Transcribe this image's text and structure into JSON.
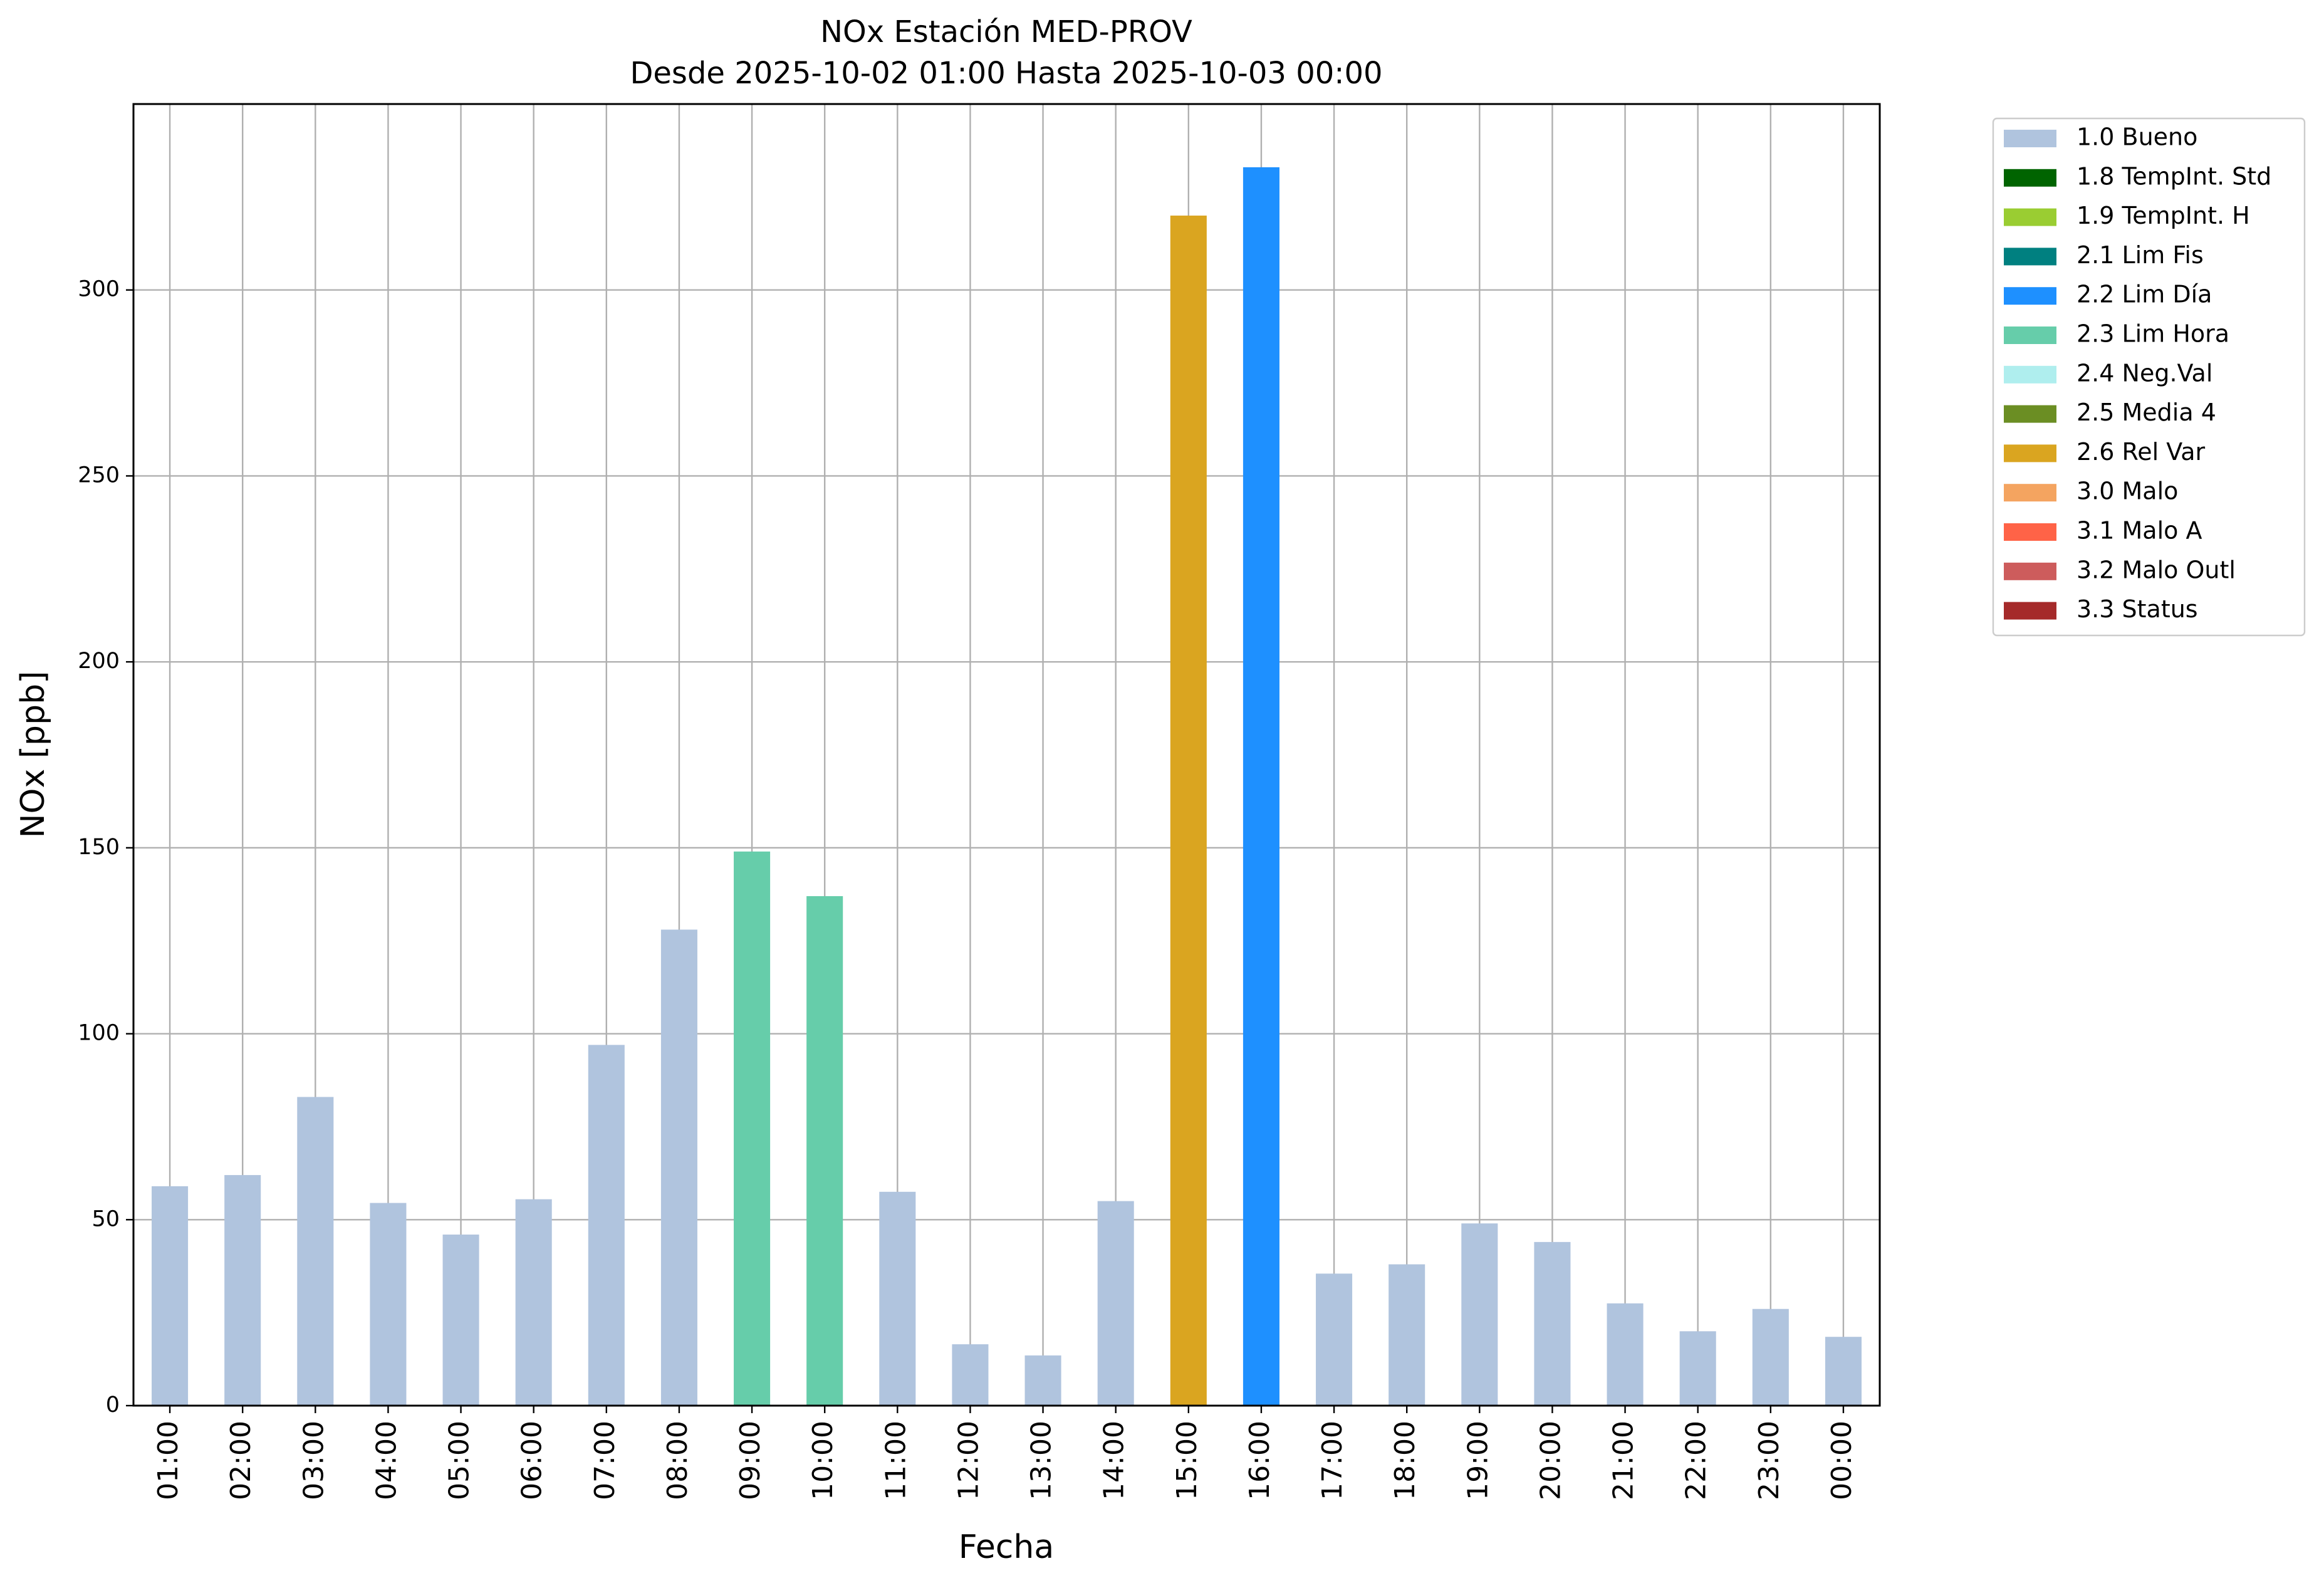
{
  "chart_data": {
    "type": "bar",
    "title": "NOx Estación MED-PROV",
    "subtitle": "Desde 2025-10-02 01:00 Hasta 2025-10-03 00:00",
    "x_label": "Fecha",
    "y_label": "NOx [ppb]",
    "categories": [
      "01:00",
      "02:00",
      "03:00",
      "04:00",
      "05:00",
      "06:00",
      "07:00",
      "08:00",
      "09:00",
      "10:00",
      "11:00",
      "12:00",
      "13:00",
      "14:00",
      "15:00",
      "16:00",
      "17:00",
      "18:00",
      "19:00",
      "20:00",
      "21:00",
      "22:00",
      "23:00",
      "00:00"
    ],
    "series": [
      {
        "name": "1.0 Bueno",
        "color": "#b0c4de",
        "values": [
          59,
          62,
          83,
          54.5,
          46,
          55.5,
          97,
          128,
          null,
          null,
          57.5,
          16.5,
          13.5,
          55,
          null,
          null,
          35.5,
          38,
          49,
          44,
          27.5,
          20,
          26,
          18.5
        ]
      },
      {
        "name": "1.8 TempInt. Std",
        "color": "#006400",
        "values": [
          null,
          null,
          null,
          null,
          null,
          null,
          null,
          null,
          null,
          null,
          null,
          null,
          null,
          null,
          null,
          null,
          null,
          null,
          null,
          null,
          null,
          null,
          null,
          null
        ]
      },
      {
        "name": "1.9 TempInt. H",
        "color": "#9acd32",
        "values": [
          null,
          null,
          null,
          null,
          null,
          null,
          null,
          null,
          null,
          null,
          null,
          null,
          null,
          null,
          null,
          null,
          null,
          null,
          null,
          null,
          null,
          null,
          null,
          null
        ]
      },
      {
        "name": "2.1 Lim Fis",
        "color": "#008080",
        "values": [
          null,
          null,
          null,
          null,
          null,
          null,
          null,
          null,
          null,
          null,
          null,
          null,
          null,
          null,
          null,
          null,
          null,
          null,
          null,
          null,
          null,
          null,
          null,
          null
        ]
      },
      {
        "name": "2.2 Lim Día",
        "color": "#1e90ff",
        "values": [
          null,
          null,
          null,
          null,
          null,
          null,
          null,
          null,
          null,
          null,
          null,
          null,
          null,
          null,
          null,
          333,
          null,
          null,
          null,
          null,
          null,
          null,
          null,
          null
        ]
      },
      {
        "name": "2.3 Lim Hora",
        "color": "#66cdaa",
        "values": [
          null,
          null,
          null,
          null,
          null,
          null,
          null,
          null,
          149,
          137,
          null,
          null,
          null,
          null,
          null,
          null,
          null,
          null,
          null,
          null,
          null,
          null,
          null,
          null
        ]
      },
      {
        "name": "2.4 Neg.Val",
        "color": "#afeeee",
        "values": [
          null,
          null,
          null,
          null,
          null,
          null,
          null,
          null,
          null,
          null,
          null,
          null,
          null,
          null,
          null,
          null,
          null,
          null,
          null,
          null,
          null,
          null,
          null,
          null
        ]
      },
      {
        "name": "2.5 Media 4",
        "color": "#6b8e23",
        "values": [
          null,
          null,
          null,
          null,
          null,
          null,
          null,
          null,
          null,
          null,
          null,
          null,
          null,
          null,
          null,
          null,
          null,
          null,
          null,
          null,
          null,
          null,
          null,
          null
        ]
      },
      {
        "name": "2.6 Rel Var",
        "color": "#daa520",
        "values": [
          null,
          null,
          null,
          null,
          null,
          null,
          null,
          null,
          null,
          null,
          null,
          null,
          null,
          null,
          320,
          null,
          null,
          null,
          null,
          null,
          null,
          null,
          null,
          null
        ]
      },
      {
        "name": "3.0 Malo",
        "color": "#f4a460",
        "values": [
          null,
          null,
          null,
          null,
          null,
          null,
          null,
          null,
          null,
          null,
          null,
          null,
          null,
          null,
          null,
          null,
          null,
          null,
          null,
          null,
          null,
          null,
          null,
          null
        ]
      },
      {
        "name": "3.1 Malo A",
        "color": "#ff6347",
        "values": [
          null,
          null,
          null,
          null,
          null,
          null,
          null,
          null,
          null,
          null,
          null,
          null,
          null,
          null,
          null,
          null,
          null,
          null,
          null,
          null,
          null,
          null,
          null,
          null
        ]
      },
      {
        "name": "3.2 Malo Outl",
        "color": "#cd5c5c",
        "values": [
          null,
          null,
          null,
          null,
          null,
          null,
          null,
          null,
          null,
          null,
          null,
          null,
          null,
          null,
          null,
          null,
          null,
          null,
          null,
          null,
          null,
          null,
          null,
          null
        ]
      },
      {
        "name": "3.3 Status",
        "color": "#a52a2a",
        "values": [
          null,
          null,
          null,
          null,
          null,
          null,
          null,
          null,
          null,
          null,
          null,
          null,
          null,
          null,
          null,
          null,
          null,
          null,
          null,
          null,
          null,
          null,
          null,
          null
        ]
      }
    ],
    "ylim": [
      0,
      350
    ],
    "yticks": [
      0,
      50,
      100,
      150,
      200,
      250,
      300
    ],
    "grid": true,
    "legend": "outside-upper-right"
  }
}
